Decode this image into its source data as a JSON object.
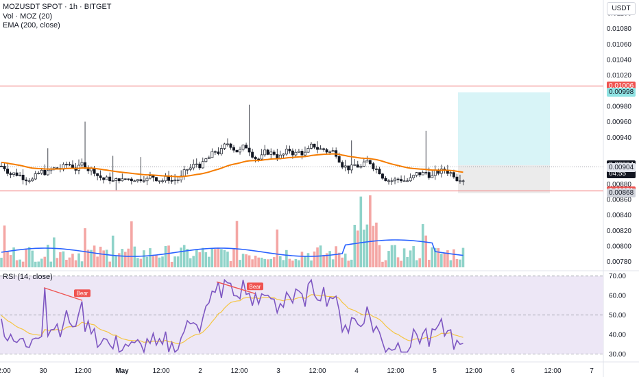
{
  "header": {
    "symbol_line": "MOZUSDT SPOT · 1h · BITGET",
    "volume_line": "Vol · MOZ (20)",
    "ema_line": "EMA (200, close)",
    "currency": "USDT"
  },
  "rsi_label": "RSI (14, close)",
  "colors": {
    "bull": "#26a69a",
    "bear": "#ef5350",
    "ema": "#f57c00",
    "volume_ma": "#2962ff",
    "rsi_line": "#7e57c2",
    "rsi_ma": "#f5c542",
    "rsi_band": "#ede7f6",
    "hline": "#f28e8e",
    "target_zone": "#d8f4f7",
    "stop_zone": "#ebebeb"
  },
  "price_axis_ticks": [
    "0.01100",
    "0.01080",
    "0.01060",
    "0.01040",
    "0.01020",
    "0.00980",
    "0.00960",
    "0.00940",
    "0.00880",
    "0.00860",
    "0.00840",
    "0.00820",
    "0.00800",
    "0.00780"
  ],
  "price_axis_tick_values": [
    0.011,
    0.0108,
    0.0106,
    0.0104,
    0.0102,
    0.0098,
    0.0096,
    0.0094,
    0.0088,
    0.0086,
    0.0084,
    0.0082,
    0.008,
    0.0078
  ],
  "rsi_axis_ticks": [
    "70.00",
    "60.00",
    "50.00",
    "40.00",
    "30.00"
  ],
  "rsi_axis_tick_values": [
    70,
    60,
    50,
    40,
    30
  ],
  "time_axis_labels": [
    "2:00",
    "30",
    "12:00",
    "May",
    "12:00",
    "2",
    "12:00",
    "3",
    "12:00",
    "4",
    "12:00",
    "5",
    "12:00",
    "6",
    "12:00",
    "7"
  ],
  "price_tags": [
    {
      "label": "0.01006",
      "value": 0.01006,
      "bg": "#ef5350",
      "fg": "#ffffff"
    },
    {
      "label": "0.00998",
      "value": 0.00998,
      "bg": "#8fe3e3",
      "fg": "#131722"
    },
    {
      "label": "0.00904",
      "value": 0.00904,
      "bg": "#131722",
      "fg": "#ffffff",
      "countdown": "04:55"
    },
    {
      "label": "0.00904",
      "value": 0.00901,
      "bg": "#e0e3eb",
      "fg": "#131722"
    },
    {
      "label": "0.00871",
      "value": 0.00871,
      "bg": "#ef5350",
      "fg": "#ffffff"
    },
    {
      "label": "0.00868",
      "value": 0.00868,
      "bg": "#d1d4dc",
      "fg": "#131722"
    }
  ],
  "chart_data": {
    "type": "candlestick",
    "symbol": "MOZUSDT",
    "timeframe": "1h",
    "price_range": [
      0.0077,
      0.01115
    ],
    "horizontal_lines": [
      0.01006,
      0.00871
    ],
    "position_tool": {
      "entry": 0.00904,
      "target": 0.00998,
      "stop": 0.00868
    },
    "rsi_range": [
      27,
      72
    ],
    "rsi_levels": [
      70,
      50,
      30
    ],
    "divergence_labels": [
      {
        "text": "Bear",
        "rsi_from": 64,
        "rsi_to": 57.5
      },
      {
        "text": "Bear",
        "rsi_from": 67,
        "rsi_to": 61
      }
    ]
  }
}
